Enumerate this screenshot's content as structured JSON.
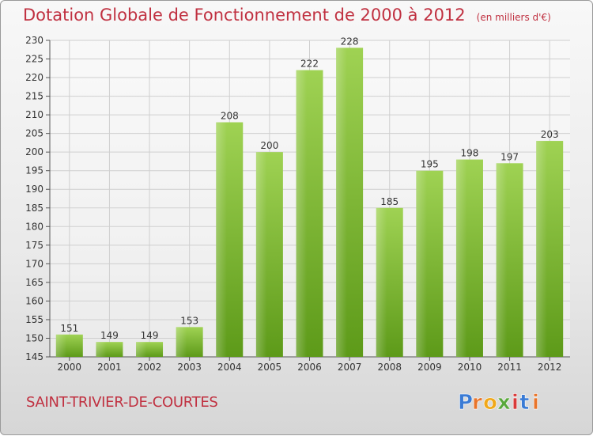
{
  "title": "Dotation Globale de Fonctionnement de 2000 à 2012",
  "subtitle": "(en milliers d'€)",
  "commune": "SAINT-TRIVIER-DE-COURTES",
  "logo": {
    "text": "Proxiti",
    "letters": [
      "P",
      "r",
      "o",
      "x",
      "i",
      "t",
      "i"
    ],
    "colors": [
      "#3a7bd5",
      "#e8742a",
      "#f0a81a",
      "#58a83a",
      "#d83a3a",
      "#3a7bd5",
      "#e8742a"
    ]
  },
  "colors": {
    "bar_top": "#9fd253",
    "bar_bottom": "#5d9a19",
    "title": "#c03040",
    "grid": "#cfcfcf"
  },
  "chart_data": {
    "type": "bar",
    "categories": [
      "2000",
      "2001",
      "2002",
      "2003",
      "2004",
      "2005",
      "2006",
      "2007",
      "2008",
      "2009",
      "2010",
      "2011",
      "2012"
    ],
    "values": [
      151,
      149,
      149,
      153,
      208,
      200,
      222,
      228,
      185,
      195,
      198,
      197,
      203
    ],
    "ylim": [
      145,
      230
    ],
    "yticks": [
      145,
      150,
      155,
      160,
      165,
      170,
      175,
      180,
      185,
      190,
      195,
      200,
      205,
      210,
      215,
      220,
      225,
      230
    ],
    "grid": true,
    "xlabel": "",
    "ylabel": ""
  }
}
